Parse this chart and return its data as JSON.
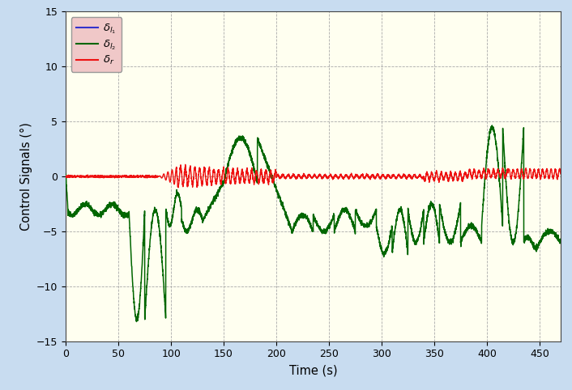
{
  "title": "",
  "xlabel": "Time (s)",
  "ylabel": "Control Signals (°)",
  "xlim": [
    0,
    470
  ],
  "ylim": [
    -15,
    15
  ],
  "xticks": [
    0,
    50,
    100,
    150,
    200,
    250,
    300,
    350,
    400,
    450
  ],
  "yticks": [
    -15,
    -10,
    -5,
    0,
    5,
    10,
    15
  ],
  "background_color": "#FFFFF0",
  "outer_background": "#C8DCF0",
  "grid_color": "#AAAAAA",
  "line1_color": "#3333CC",
  "line2_color": "#006600",
  "line3_color": "#EE1111",
  "legend_facecolor": "#F0C8C8",
  "legend_edgecolor": "#999999"
}
